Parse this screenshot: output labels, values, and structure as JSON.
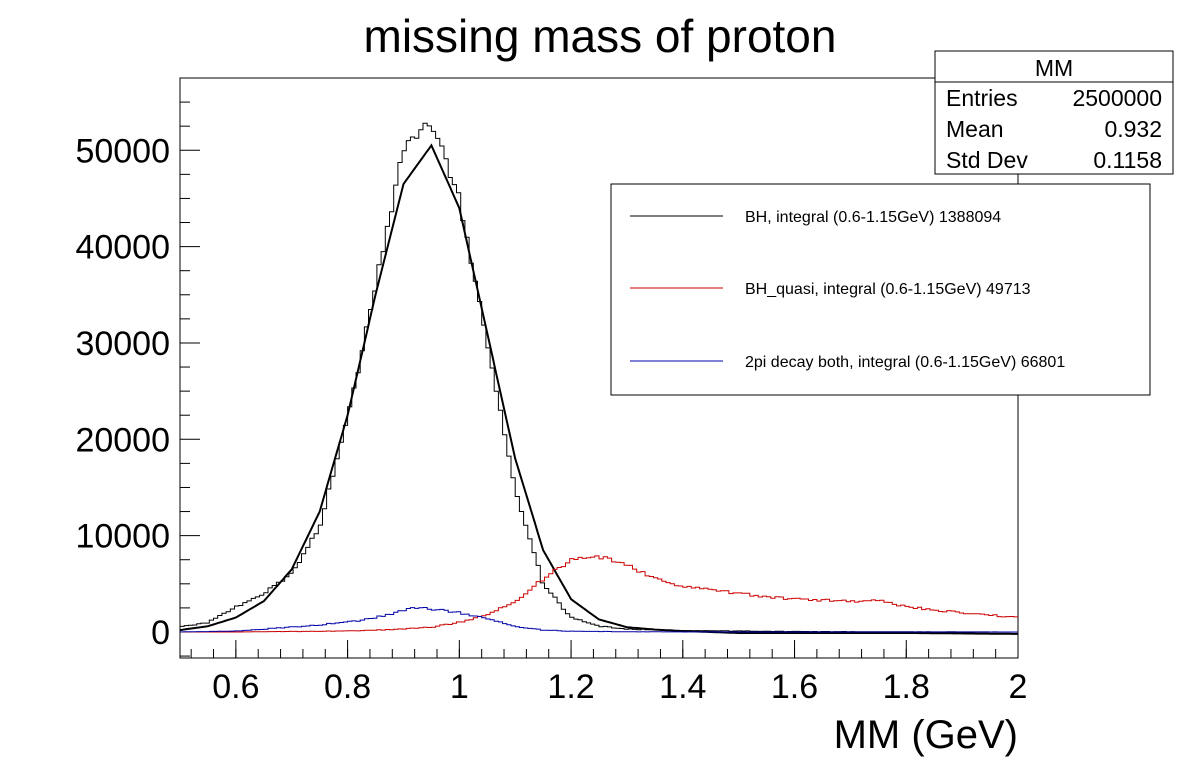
{
  "title": "missing mass of proton",
  "colors": {
    "bh": "#000000",
    "bh_quasi": "#cc0000",
    "two_pi": "#0000aa"
  },
  "stats": {
    "name": "MM",
    "rows": [
      {
        "label": "Entries",
        "value": "2500000"
      },
      {
        "label": "Mean",
        "value": "0.932"
      },
      {
        "label": "Std Dev",
        "value": "0.1158"
      }
    ]
  },
  "legend": [
    {
      "label": "BH, integral (0.6-1.15GeV) 1388094",
      "color": "#000000"
    },
    {
      "label": "BH_quasi, integral (0.6-1.15GeV) 49713",
      "color": "#cc0000"
    },
    {
      "label": "2pi decay both, integral (0.6-1.15GeV) 66801",
      "color": "#0000aa"
    }
  ],
  "chart_data": {
    "type": "line",
    "title": "missing mass of proton",
    "xlabel": "MM (GeV)",
    "ylabel": "",
    "xlim": [
      0.5,
      2.0
    ],
    "ylim": [
      -2700,
      57500
    ],
    "x_ticks": [
      0.6,
      0.8,
      1.0,
      1.2,
      1.4,
      1.6,
      1.8,
      2.0
    ],
    "x_tick_labels": [
      "0.6",
      "0.8",
      "1",
      "1.2",
      "1.4",
      "1.6",
      "1.8",
      "2"
    ],
    "y_ticks": [
      0,
      10000,
      20000,
      30000,
      40000,
      50000
    ],
    "y_tick_labels": [
      "0",
      "10000",
      "20000",
      "30000",
      "40000",
      "50000"
    ],
    "grid": false,
    "legend_position": "top-right",
    "series": [
      {
        "name": "BH, integral (0.6-1.15GeV) 1388094",
        "style": "histogram",
        "x": [
          0.5,
          0.55,
          0.6,
          0.65,
          0.7,
          0.75,
          0.8,
          0.85,
          0.9,
          0.95,
          1.0,
          1.05,
          1.1,
          1.15,
          1.2,
          1.25,
          1.3,
          1.4,
          1.6,
          1.8,
          2.0
        ],
        "values": [
          500,
          1000,
          2600,
          4000,
          6000,
          11000,
          22000,
          36000,
          50000,
          53000,
          45000,
          30000,
          15000,
          5000,
          1500,
          600,
          300,
          150,
          50,
          20,
          0
        ]
      },
      {
        "name": "BH, integral (0.6-1.15GeV) 1388094",
        "style": "fit",
        "x": [
          0.5,
          0.55,
          0.6,
          0.65,
          0.7,
          0.75,
          0.8,
          0.85,
          0.9,
          0.95,
          1.0,
          1.05,
          1.1,
          1.15,
          1.2,
          1.25,
          1.3,
          1.35,
          1.4,
          1.5,
          1.6,
          1.8,
          2.0
        ],
        "values": [
          200,
          600,
          1500,
          3200,
          6500,
          12500,
          22500,
          35000,
          46500,
          50500,
          44000,
          31000,
          18000,
          8500,
          3400,
          1300,
          500,
          250,
          100,
          -100,
          -100,
          -100,
          -200
        ]
      },
      {
        "name": "BH_quasi, integral (0.6-1.15GeV) 49713",
        "style": "histogram",
        "x": [
          0.5,
          0.6,
          0.7,
          0.8,
          0.9,
          0.95,
          1.0,
          1.05,
          1.1,
          1.15,
          1.2,
          1.25,
          1.3,
          1.35,
          1.4,
          1.5,
          1.6,
          1.7,
          1.75,
          1.8,
          1.9,
          2.0
        ],
        "values": [
          0,
          0,
          50,
          100,
          300,
          500,
          1000,
          1800,
          3200,
          5500,
          7500,
          7800,
          7000,
          5500,
          4800,
          4000,
          3400,
          3200,
          3300,
          2600,
          2000,
          1500
        ]
      },
      {
        "name": "2pi decay both, integral (0.6-1.15GeV) 66801",
        "style": "histogram",
        "x": [
          0.5,
          0.6,
          0.7,
          0.8,
          0.85,
          0.9,
          0.92,
          0.95,
          1.0,
          1.05,
          1.1,
          1.15,
          1.2,
          1.3,
          1.5,
          1.8,
          2.0
        ],
        "values": [
          0,
          100,
          500,
          1000,
          1500,
          2200,
          2500,
          2400,
          2000,
          1400,
          600,
          200,
          80,
          20,
          0,
          0,
          0
        ]
      }
    ]
  }
}
